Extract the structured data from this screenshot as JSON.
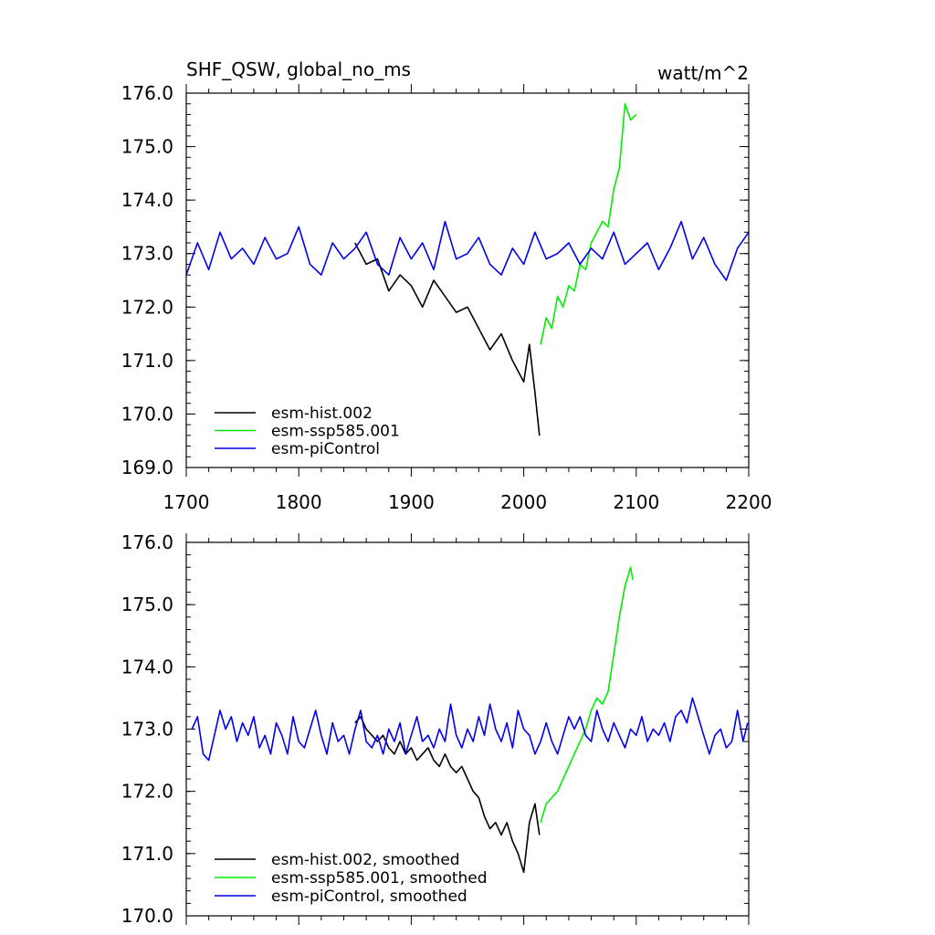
{
  "chart_data": [
    {
      "type": "line",
      "title": "SHF_QSW, global_no_ms",
      "units": "watt/m^2",
      "xlim": [
        1700,
        2200
      ],
      "ylim": [
        169.0,
        176.0
      ],
      "x_ticks": [
        "1700",
        "1800",
        "1900",
        "2000",
        "2100",
        "2200"
      ],
      "y_ticks": [
        "169.0",
        "170.0",
        "171.0",
        "172.0",
        "173.0",
        "174.0",
        "175.0",
        "176.0"
      ],
      "legend": "bottom-left",
      "series": [
        {
          "name": "esm-hist.002",
          "color": "#000000",
          "x": [
            1850,
            1860,
            1870,
            1880,
            1890,
            1900,
            1910,
            1920,
            1930,
            1940,
            1950,
            1960,
            1970,
            1980,
            1990,
            2000,
            2005,
            2010,
            2014
          ],
          "y": [
            173.2,
            172.8,
            172.9,
            172.3,
            172.6,
            172.4,
            172.0,
            172.5,
            172.2,
            171.9,
            172.0,
            171.6,
            171.2,
            171.5,
            171.0,
            170.6,
            171.3,
            170.4,
            169.6
          ]
        },
        {
          "name": "esm-ssp585.001",
          "color": "#00ee00",
          "x": [
            2015,
            2020,
            2025,
            2030,
            2035,
            2040,
            2045,
            2050,
            2055,
            2060,
            2065,
            2070,
            2075,
            2080,
            2085,
            2090,
            2095,
            2100
          ],
          "y": [
            171.3,
            171.8,
            171.6,
            172.2,
            172.0,
            172.4,
            172.3,
            172.8,
            172.7,
            173.2,
            173.4,
            173.6,
            173.5,
            174.2,
            174.6,
            175.8,
            175.5,
            175.6
          ]
        },
        {
          "name": "esm-piControl",
          "color": "#0000ee",
          "x": [
            1700,
            1710,
            1720,
            1730,
            1740,
            1750,
            1760,
            1770,
            1780,
            1790,
            1800,
            1810,
            1820,
            1830,
            1840,
            1850,
            1860,
            1870,
            1880,
            1890,
            1900,
            1910,
            1920,
            1930,
            1940,
            1950,
            1960,
            1970,
            1980,
            1990,
            2000,
            2010,
            2020,
            2030,
            2040,
            2050,
            2060,
            2070,
            2080,
            2090,
            2100,
            2110,
            2120,
            2130,
            2140,
            2150,
            2160,
            2170,
            2180,
            2190,
            2200
          ],
          "y": [
            172.6,
            173.2,
            172.7,
            173.4,
            172.9,
            173.1,
            172.8,
            173.3,
            172.9,
            173.0,
            173.5,
            172.8,
            172.6,
            173.2,
            172.9,
            173.1,
            173.4,
            172.8,
            172.6,
            173.3,
            172.9,
            173.2,
            172.7,
            173.6,
            172.9,
            173.0,
            173.3,
            172.8,
            172.6,
            173.1,
            172.8,
            173.4,
            172.9,
            173.0,
            173.2,
            172.8,
            173.1,
            172.9,
            173.4,
            172.8,
            173.0,
            173.2,
            172.7,
            173.1,
            173.6,
            172.9,
            173.3,
            172.8,
            172.5,
            173.1,
            173.4
          ]
        }
      ]
    },
    {
      "type": "line",
      "title": "",
      "xlim": [
        1700,
        2200
      ],
      "ylim": [
        170.0,
        176.0
      ],
      "y_ticks": [
        "170.0",
        "171.0",
        "172.0",
        "173.0",
        "174.0",
        "175.0",
        "176.0"
      ],
      "legend": "bottom-left",
      "series": [
        {
          "name": "esm-hist.002, smoothed",
          "color": "#000000",
          "x": [
            1850,
            1855,
            1860,
            1865,
            1870,
            1875,
            1880,
            1885,
            1890,
            1895,
            1900,
            1905,
            1910,
            1915,
            1920,
            1925,
            1930,
            1935,
            1940,
            1945,
            1950,
            1955,
            1960,
            1965,
            1970,
            1975,
            1980,
            1985,
            1990,
            1995,
            2000,
            2005,
            2010,
            2014
          ],
          "y": [
            173.1,
            173.2,
            173.0,
            172.9,
            172.8,
            172.9,
            172.7,
            172.6,
            172.8,
            172.6,
            172.7,
            172.5,
            172.6,
            172.7,
            172.5,
            172.4,
            172.6,
            172.4,
            172.3,
            172.4,
            172.2,
            172.0,
            171.9,
            171.6,
            171.4,
            171.5,
            171.3,
            171.5,
            171.2,
            171.0,
            170.7,
            171.5,
            171.8,
            171.3
          ]
        },
        {
          "name": "esm-ssp585.001, smoothed",
          "color": "#00ee00",
          "x": [
            2015,
            2020,
            2025,
            2030,
            2035,
            2040,
            2045,
            2050,
            2055,
            2060,
            2065,
            2070,
            2075,
            2080,
            2085,
            2090,
            2095,
            2097
          ],
          "y": [
            171.5,
            171.8,
            171.9,
            172.0,
            172.2,
            172.4,
            172.6,
            172.8,
            173.0,
            173.3,
            173.5,
            173.4,
            173.6,
            174.2,
            174.8,
            175.3,
            175.6,
            175.4
          ]
        },
        {
          "name": "esm-piControl, smoothed",
          "color": "#0000ee",
          "x": [
            1705,
            1710,
            1715,
            1720,
            1725,
            1730,
            1735,
            1740,
            1745,
            1750,
            1755,
            1760,
            1765,
            1770,
            1775,
            1780,
            1785,
            1790,
            1795,
            1800,
            1805,
            1810,
            1815,
            1820,
            1825,
            1830,
            1835,
            1840,
            1845,
            1850,
            1855,
            1860,
            1865,
            1870,
            1875,
            1880,
            1885,
            1890,
            1895,
            1900,
            1905,
            1910,
            1915,
            1920,
            1925,
            1930,
            1935,
            1940,
            1945,
            1950,
            1955,
            1960,
            1965,
            1970,
            1975,
            1980,
            1985,
            1990,
            1995,
            2000,
            2005,
            2010,
            2015,
            2020,
            2025,
            2030,
            2035,
            2040,
            2045,
            2050,
            2055,
            2060,
            2065,
            2070,
            2075,
            2080,
            2085,
            2090,
            2095,
            2100,
            2105,
            2110,
            2115,
            2120,
            2125,
            2130,
            2135,
            2140,
            2145,
            2150,
            2155,
            2160,
            2165,
            2170,
            2175,
            2180,
            2185,
            2190,
            2195,
            2199
          ],
          "y": [
            173.0,
            173.2,
            172.6,
            172.5,
            172.9,
            173.3,
            173.0,
            173.2,
            172.8,
            173.1,
            172.9,
            173.2,
            172.7,
            172.9,
            172.6,
            173.1,
            172.9,
            172.6,
            173.2,
            172.8,
            172.7,
            173.0,
            173.3,
            172.9,
            172.6,
            173.1,
            172.8,
            172.9,
            172.6,
            173.0,
            173.3,
            172.8,
            172.7,
            172.9,
            172.6,
            173.0,
            172.8,
            173.1,
            172.6,
            172.9,
            173.2,
            172.8,
            172.9,
            172.7,
            173.0,
            172.8,
            173.4,
            172.9,
            172.7,
            173.0,
            172.8,
            173.2,
            172.9,
            173.4,
            173.0,
            172.8,
            173.1,
            172.7,
            173.3,
            173.0,
            172.9,
            172.6,
            172.8,
            173.1,
            172.8,
            172.6,
            172.9,
            173.2,
            173.0,
            173.2,
            172.9,
            172.8,
            173.3,
            173.0,
            172.8,
            173.1,
            172.9,
            172.7,
            173.0,
            172.9,
            173.2,
            172.8,
            173.0,
            172.9,
            173.1,
            172.8,
            173.2,
            173.3,
            173.1,
            173.5,
            173.2,
            172.9,
            172.6,
            172.9,
            173.0,
            172.7,
            172.8,
            173.3,
            172.8,
            173.1
          ]
        }
      ]
    }
  ]
}
